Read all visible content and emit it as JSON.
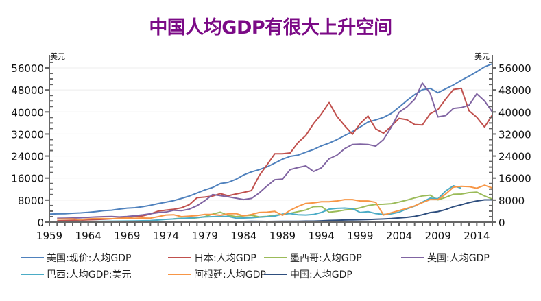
{
  "chart_data": {
    "type": "line",
    "title": "中国人均GDP有很大上升空间",
    "xlabel": "",
    "ylabel_left": "美元",
    "ylabel_right": "美元",
    "x": [
      1959,
      1960,
      1961,
      1962,
      1963,
      1964,
      1965,
      1966,
      1967,
      1968,
      1969,
      1970,
      1971,
      1972,
      1973,
      1974,
      1975,
      1976,
      1977,
      1978,
      1979,
      1980,
      1981,
      1982,
      1983,
      1984,
      1985,
      1986,
      1987,
      1988,
      1989,
      1990,
      1991,
      1992,
      1993,
      1994,
      1995,
      1996,
      1997,
      1998,
      1999,
      2000,
      2001,
      2002,
      2003,
      2004,
      2005,
      2006,
      2007,
      2008,
      2009,
      2010,
      2011,
      2012,
      2013,
      2014,
      2015,
      2016
    ],
    "xlim": [
      1959,
      2016
    ],
    "x_ticks": [
      "1959",
      "1964",
      "1969",
      "1974",
      "1979",
      "1984",
      "1989",
      "1994",
      "1999",
      "2004",
      "2009",
      "2014"
    ],
    "ylim": [
      0,
      60000
    ],
    "y_ticks": [
      "0",
      "8000",
      "16000",
      "24000",
      "32000",
      "40000",
      "48000",
      "56000"
    ],
    "grid": true,
    "legend_position": "bottom",
    "series": [
      {
        "name": "美国:现价:人均GDP",
        "color": "#4f81bd",
        "values": [
          2900,
          3000,
          3070,
          3240,
          3370,
          3570,
          3830,
          4150,
          4340,
          4730,
          5080,
          5230,
          5610,
          6090,
          6730,
          7240,
          7820,
          8610,
          9450,
          10560,
          11670,
          12570,
          13980,
          14430,
          15540,
          17120,
          18240,
          19070,
          20040,
          21420,
          22860,
          23890,
          24340,
          25420,
          26390,
          27690,
          28690,
          29970,
          31460,
          32850,
          34510,
          36330,
          37130,
          38040,
          39490,
          41720,
          44120,
          46300,
          48050,
          48570,
          47000,
          48400,
          49800,
          51500,
          53000,
          54600,
          56400,
          57500
        ]
      },
      {
        "name": "日本:人均GDP",
        "color": "#c0504d",
        "values": [
          null,
          480,
          560,
          630,
          720,
          840,
          920,
          1060,
          1230,
          1450,
          1670,
          2040,
          2270,
          2960,
          3990,
          4360,
          4660,
          5200,
          6330,
          8850,
          9100,
          9460,
          10360,
          9580,
          10210,
          10790,
          11460,
          16880,
          20750,
          24820,
          24810,
          25140,
          28920,
          31460,
          35770,
          39270,
          43440,
          38440,
          35020,
          31900,
          35790,
          38530,
          33850,
          32290,
          34810,
          37690,
          37220,
          35430,
          35280,
          39340,
          40860,
          44670,
          48170,
          48600,
          40450,
          38110,
          34520,
          38900
        ]
      },
      {
        "name": "墨西哥:人均GDP",
        "color": "#9bbb59",
        "values": [
          null,
          null,
          null,
          null,
          null,
          null,
          null,
          null,
          null,
          null,
          null,
          null,
          null,
          null,
          null,
          null,
          1200,
          1450,
          1300,
          1600,
          2000,
          2900,
          3600,
          2500,
          2000,
          2300,
          2500,
          1900,
          2100,
          2500,
          2800,
          3200,
          3800,
          4400,
          5600,
          5700,
          3600,
          3900,
          4400,
          4600,
          5200,
          6000,
          6400,
          6500,
          6700,
          7300,
          8000,
          8800,
          9500,
          9800,
          8100,
          9000,
          10100,
          10200,
          10700,
          10900,
          9500,
          8400
        ]
      },
      {
        "name": "英国:人均GDP",
        "color": "#8064a2",
        "values": [
          null,
          1400,
          1450,
          1500,
          1600,
          1750,
          1900,
          2000,
          2050,
          1900,
          2050,
          2350,
          2650,
          3050,
          3450,
          3650,
          4300,
          4150,
          4700,
          5950,
          7800,
          10000,
          9600,
          9200,
          8700,
          8200,
          8600,
          10600,
          13100,
          15400,
          15600,
          19100,
          19800,
          20400,
          18400,
          19700,
          23000,
          24300,
          26700,
          28200,
          28300,
          28200,
          27600,
          30000,
          34500,
          39900,
          41800,
          44600,
          50500,
          46800,
          38200,
          38700,
          41300,
          41600,
          42400,
          46600,
          44000,
          40000
        ]
      },
      {
        "name": "巴西:人均GDP:美元",
        "color": "#4bacc6",
        "values": [
          null,
          200,
          220,
          250,
          270,
          260,
          270,
          330,
          350,
          370,
          400,
          450,
          500,
          570,
          770,
          1000,
          1150,
          1350,
          1500,
          1650,
          1900,
          2000,
          2050,
          2100,
          1450,
          1500,
          1600,
          1800,
          2000,
          2200,
          2900,
          3100,
          2700,
          2600,
          2800,
          3500,
          4700,
          5000,
          5100,
          4900,
          3500,
          3800,
          3100,
          2800,
          3000,
          3600,
          4800,
          5800,
          7300,
          8700,
          8500,
          11300,
          13200,
          12300,
          null,
          null,
          null,
          null
        ]
      },
      {
        "name": "阿根廷:人均GDP",
        "color": "#f79646",
        "values": [
          null,
          1100,
          1150,
          1200,
          900,
          1200,
          1300,
          1300,
          1250,
          1350,
          1500,
          1400,
          1500,
          1450,
          2000,
          2600,
          2700,
          2000,
          2200,
          2400,
          2800,
          2800,
          2500,
          3000,
          3100,
          2300,
          2800,
          3500,
          3600,
          3900,
          2500,
          4300,
          5700,
          6800,
          7000,
          7400,
          7400,
          7700,
          8200,
          8200,
          7700,
          7700,
          7200,
          2600,
          3400,
          4200,
          5000,
          5900,
          7100,
          8200,
          8200,
          10200,
          12700,
          13000,
          12900,
          12300,
          13400,
          12400
        ]
      },
      {
        "name": "中国:人均GDP",
        "color": "#2e4e7e",
        "values": [
          null,
          90,
          75,
          70,
          75,
          85,
          100,
          105,
          100,
          90,
          100,
          110,
          120,
          130,
          150,
          155,
          160,
          155,
          180,
          155,
          185,
          195,
          195,
          205,
          225,
          250,
          295,
          280,
          250,
          285,
          310,
          320,
          330,
          365,
          375,
          475,
          610,
          700,
          780,
          830,
          870,
          955,
          1050,
          1140,
          1290,
          1510,
          1750,
          2100,
          2700,
          3470,
          3840,
          4550,
          5600,
          6300,
          7100,
          7700,
          8100,
          8100
        ]
      }
    ]
  }
}
